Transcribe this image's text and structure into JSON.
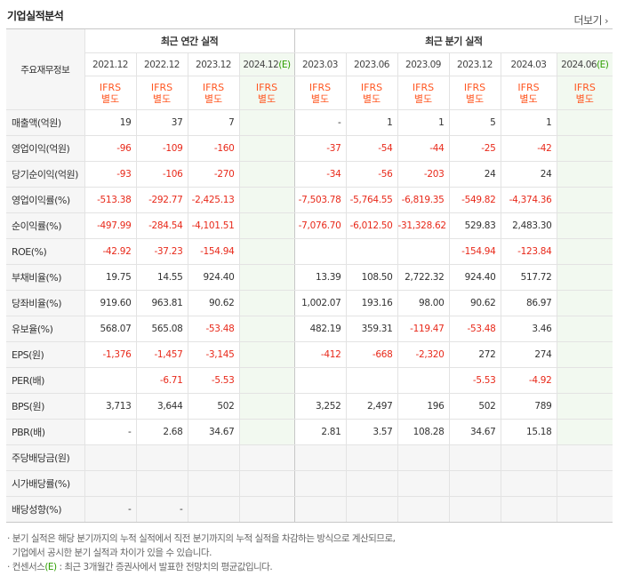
{
  "header": {
    "title": "기업실적분석",
    "more_label": "더보기"
  },
  "table": {
    "corner_label": "주요재무정보",
    "group_annual": "최근 연간 실적",
    "group_quarter": "최근 분기 실적",
    "periods": [
      "2021.12",
      "2022.12",
      "2023.12",
      "2024.12",
      "2023.03",
      "2023.06",
      "2023.09",
      "2023.12",
      "2024.03",
      "2024.06"
    ],
    "estimate_marker": "(E)",
    "ifrs_top": "IFRS",
    "ifrs_bottom": "별도",
    "rows": [
      {
        "label": "매출액(억원)",
        "values": [
          "19",
          "37",
          "7",
          "",
          "-",
          "1",
          "1",
          "5",
          "1",
          ""
        ]
      },
      {
        "label": "영업이익(억원)",
        "values": [
          "-96",
          "-109",
          "-160",
          "",
          "-37",
          "-54",
          "-44",
          "-25",
          "-42",
          ""
        ]
      },
      {
        "label": "당기순이익(억원)",
        "values": [
          "-93",
          "-106",
          "-270",
          "",
          "-34",
          "-56",
          "-203",
          "24",
          "24",
          ""
        ]
      },
      {
        "label": "영업이익률(%)",
        "values": [
          "-513.38",
          "-292.77",
          "-2,425.13",
          "",
          "-7,503.78",
          "-5,764.55",
          "-6,819.35",
          "-549.82",
          "-4,374.36",
          ""
        ]
      },
      {
        "label": "순이익률(%)",
        "values": [
          "-497.99",
          "-284.54",
          "-4,101.51",
          "",
          "-7,076.70",
          "-6,012.50",
          "-31,328.62",
          "529.83",
          "2,483.30",
          ""
        ]
      },
      {
        "label": "ROE(%)",
        "values": [
          "-42.92",
          "-37.23",
          "-154.94",
          "",
          "",
          "",
          "",
          "-154.94",
          "-123.84",
          ""
        ]
      },
      {
        "label": "부채비율(%)",
        "values": [
          "19.75",
          "14.55",
          "924.40",
          "",
          "13.39",
          "108.50",
          "2,722.32",
          "924.40",
          "517.72",
          ""
        ]
      },
      {
        "label": "당좌비율(%)",
        "values": [
          "919.60",
          "963.81",
          "90.62",
          "",
          "1,002.07",
          "193.16",
          "98.00",
          "90.62",
          "86.97",
          ""
        ]
      },
      {
        "label": "유보율(%)",
        "values": [
          "568.07",
          "565.08",
          "-53.48",
          "",
          "482.19",
          "359.31",
          "-119.47",
          "-53.48",
          "3.46",
          ""
        ]
      },
      {
        "label": "EPS(원)",
        "values": [
          "-1,376",
          "-1,457",
          "-3,145",
          "",
          "-412",
          "-668",
          "-2,320",
          "272",
          "274",
          ""
        ]
      },
      {
        "label": "PER(배)",
        "values": [
          "",
          "-6.71",
          "-5.53",
          "",
          "",
          "",
          "",
          "-5.53",
          "-4.92",
          ""
        ]
      },
      {
        "label": "BPS(원)",
        "values": [
          "3,713",
          "3,644",
          "502",
          "",
          "3,252",
          "2,497",
          "196",
          "502",
          "789",
          ""
        ]
      },
      {
        "label": "PBR(배)",
        "values": [
          "-",
          "2.68",
          "34.67",
          "",
          "2.81",
          "3.57",
          "108.28",
          "34.67",
          "15.18",
          ""
        ]
      },
      {
        "label": "주당배당금(원)",
        "values": [
          "",
          "",
          "",
          "",
          "",
          "",
          "",
          "",
          "",
          ""
        ]
      },
      {
        "label": "시가배당률(%)",
        "values": [
          "",
          "",
          "",
          "",
          "",
          "",
          "",
          "",
          "",
          ""
        ]
      },
      {
        "label": "배당성향(%)",
        "values": [
          "-",
          "-",
          "",
          "",
          "",
          "",
          "",
          "",
          "",
          ""
        ]
      }
    ]
  },
  "notes": {
    "line1": "분기 실적은 해당 분기까지의 누적 실적에서 직전 분기까지의 누적 실적을 차감하는 방식으로 계산되므로,",
    "line2": "기업에서 공시한 분기 실적과 차이가 있을 수 있습니다.",
    "line3_prefix": "컨센서스",
    "line3_marker": "(E)",
    "line3_suffix": ": 최근 3개월간 증권사에서 발표한 전망치의 평균값입니다."
  },
  "colors": {
    "negative": "#e8291a",
    "ifrs": "#ff5722",
    "estimate_bg": "#f2f9f0",
    "estimate_marker": "#2e9e00"
  }
}
